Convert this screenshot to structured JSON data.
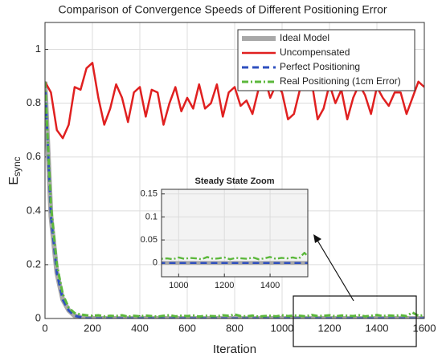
{
  "chart_data": [
    {
      "type": "line",
      "title": "Comparison of Convergence Speeds of Different Positioning Error",
      "xlabel": "Iteration",
      "ylabel": "E",
      "ylabel_subscript": "sync",
      "x": [
        0,
        25,
        50,
        75,
        100,
        125,
        150,
        175,
        200,
        225,
        250,
        275,
        300,
        325,
        350,
        375,
        400,
        425,
        450,
        475,
        500,
        525,
        550,
        575,
        600,
        625,
        650,
        675,
        700,
        725,
        750,
        775,
        800,
        825,
        850,
        875,
        900,
        925,
        950,
        975,
        1000,
        1025,
        1050,
        1075,
        1100,
        1125,
        1150,
        1175,
        1200,
        1225,
        1250,
        1275,
        1300,
        1325,
        1350,
        1375,
        1400,
        1425,
        1450,
        1475,
        1500,
        1525,
        1550,
        1575,
        1600
      ],
      "series": [
        {
          "name": "Ideal Model",
          "color": "#a8a8a8",
          "values": [
            0.88,
            0.38,
            0.17,
            0.07,
            0.03,
            0.01,
            0.005,
            0,
            0,
            0,
            0,
            0,
            0,
            0,
            0,
            0,
            0,
            0,
            0,
            0,
            0,
            0,
            0,
            0,
            0,
            0,
            0,
            0,
            0,
            0,
            0,
            0,
            0,
            0,
            0,
            0,
            0,
            0,
            0,
            0,
            0,
            0,
            0,
            0,
            0,
            0,
            0,
            0,
            0,
            0,
            0,
            0,
            0,
            0,
            0,
            0,
            0,
            0,
            0,
            0,
            0,
            0,
            0,
            0,
            0
          ]
        },
        {
          "name": "Uncompensated",
          "color": "#e02020",
          "values": [
            0.88,
            0.84,
            0.7,
            0.67,
            0.72,
            0.86,
            0.85,
            0.93,
            0.95,
            0.82,
            0.72,
            0.78,
            0.87,
            0.82,
            0.73,
            0.84,
            0.86,
            0.75,
            0.85,
            0.84,
            0.72,
            0.8,
            0.86,
            0.77,
            0.82,
            0.78,
            0.87,
            0.78,
            0.8,
            0.87,
            0.75,
            0.84,
            0.86,
            0.79,
            0.81,
            0.76,
            0.85,
            0.9,
            0.82,
            0.87,
            0.84,
            0.74,
            0.76,
            0.85,
            0.86,
            0.88,
            0.74,
            0.78,
            0.87,
            0.8,
            0.85,
            0.74,
            0.82,
            0.87,
            0.83,
            0.76,
            0.86,
            0.82,
            0.79,
            0.84,
            0.84,
            0.76,
            0.82,
            0.88,
            0.86
          ]
        },
        {
          "name": "Perfect Positioning",
          "color": "#2e4fbf",
          "values": [
            0.88,
            0.38,
            0.17,
            0.07,
            0.03,
            0.01,
            0.005,
            0,
            0,
            0,
            0,
            0,
            0,
            0,
            0,
            0,
            0,
            0,
            0,
            0,
            0,
            0,
            0,
            0,
            0,
            0,
            0,
            0,
            0,
            0,
            0,
            0,
            0,
            0,
            0,
            0,
            0,
            0,
            0,
            0,
            0,
            0,
            0,
            0,
            0,
            0,
            0,
            0,
            0,
            0,
            0,
            0,
            0,
            0,
            0,
            0,
            0,
            0,
            0,
            0,
            0,
            0,
            0,
            0,
            0
          ]
        },
        {
          "name": "Real Positioning (1cm Error)",
          "color": "#5cb83c",
          "values": [
            0.88,
            0.42,
            0.2,
            0.09,
            0.04,
            0.02,
            0.015,
            0.012,
            0.01,
            0.012,
            0.008,
            0.01,
            0.009,
            0.012,
            0.007,
            0.01,
            0.008,
            0.011,
            0.009,
            0.007,
            0.01,
            0.012,
            0.008,
            0.01,
            0.009,
            0.011,
            0.007,
            0.01,
            0.009,
            0.008,
            0.012,
            0.01,
            0.015,
            0.009,
            0.008,
            0.011,
            0.007,
            0.009,
            0.01,
            0.008,
            0.012,
            0.009,
            0.011,
            0.01,
            0.008,
            0.013,
            0.009,
            0.01,
            0.012,
            0.008,
            0.011,
            0.01,
            0.009,
            0.012,
            0.008,
            0.01,
            0.013,
            0.009,
            0.011,
            0.01,
            0.012,
            0.009,
            0.022,
            0.01,
            0.012
          ]
        }
      ],
      "xlim": [
        0,
        1600
      ],
      "xticks": [
        0,
        200,
        400,
        600,
        800,
        1000,
        1200,
        1400,
        1600
      ],
      "ylim": [
        0,
        1.1
      ],
      "yticks": [
        0,
        0.2,
        0.4,
        0.6,
        0.8,
        1
      ],
      "grid": true,
      "legend": "upper right"
    },
    {
      "type": "line",
      "title": "Steady State Zoom",
      "xlim": [
        925,
        1565
      ],
      "xticks": [
        1000,
        1200,
        1400
      ],
      "ylim": [
        -0.03,
        0.16
      ],
      "yticks": [
        0,
        0.05,
        0.1,
        0.15
      ],
      "grid": true
    }
  ]
}
